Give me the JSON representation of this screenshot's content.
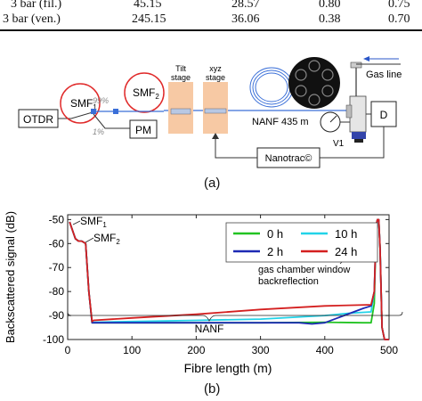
{
  "table": {
    "rows": [
      {
        "label": "3 bar (fil.)",
        "c1": "45.15",
        "c2": "28.57",
        "c3": "0.80",
        "c4": "0.75"
      },
      {
        "label": "3 bar (ven.)",
        "c1": "245.15",
        "c2": "36.06",
        "c3": "0.38",
        "c4": "0.70"
      }
    ]
  },
  "setup": {
    "otdr": "OTDR",
    "smf1": "SMF",
    "smf1_sub": "1",
    "smf2": "SMF",
    "smf2_sub": "2",
    "pct99": "99%",
    "pct1": "1%",
    "pm": "PM",
    "tilt1": "Tilt",
    "tilt2": "stage",
    "xyz1": "xyz",
    "xyz2": "stage",
    "nanf": "NANF 435 m",
    "gasline": "Gas line",
    "d": "D",
    "v1": "V1",
    "nanotrac": "Nanotrac©",
    "caption": "(a)"
  },
  "chart_data": {
    "type": "line",
    "xlabel": "Fibre length (m)",
    "ylabel": "Backscattered signal (dB)",
    "xlim": [
      0,
      500
    ],
    "ylim": [
      -100,
      -48
    ],
    "xticks": [
      "0",
      "100",
      "200",
      "300",
      "400",
      "500"
    ],
    "yticks": [
      "-50",
      "-60",
      "-70",
      "-80",
      "-90",
      "-100"
    ],
    "legend_position": "top-right",
    "annotations": {
      "smf1": "SMF",
      "smf1_sub": "1",
      "smf2": "SMF",
      "smf2_sub": "2",
      "gas1": "gas chamber window",
      "gas2": "backreflection",
      "nanf": "NANF"
    },
    "caption": "(b)",
    "series": [
      {
        "name": "0 h",
        "color": "#22c322",
        "x": [
          3,
          12,
          17,
          22,
          28,
          33,
          38,
          40,
          100,
          200,
          300,
          400,
          460,
          472,
          477,
          480,
          482,
          484,
          486,
          489,
          493,
          500
        ],
        "y": [
          -51,
          -58,
          -59,
          -59,
          -60,
          -80,
          -93,
          -93,
          -93,
          -93,
          -93,
          -92.8,
          -93,
          -93,
          -85,
          -52,
          -50,
          -50,
          -62,
          -95,
          -100,
          -100
        ]
      },
      {
        "name": "10 h",
        "color": "#22d3e8",
        "x": [
          3,
          12,
          17,
          22,
          28,
          33,
          38,
          40,
          100,
          200,
          300,
          400,
          440,
          472,
          477,
          480,
          482,
          484,
          486,
          489,
          493,
          500
        ],
        "y": [
          -51,
          -58,
          -59,
          -59,
          -60,
          -80,
          -93,
          -92.8,
          -92.5,
          -92,
          -91.5,
          -90,
          -89,
          -88.5,
          -80,
          -52,
          -50,
          -50,
          -62,
          -95,
          -100,
          -100
        ]
      },
      {
        "name": "2 h",
        "color": "#1e2ab4",
        "x": [
          3,
          12,
          17,
          22,
          28,
          33,
          38,
          40,
          100,
          200,
          300,
          360,
          380,
          400,
          420,
          440,
          460,
          472,
          477,
          480,
          482,
          484,
          486,
          489,
          493,
          500
        ],
        "y": [
          -51,
          -58,
          -59,
          -59,
          -60,
          -80,
          -93,
          -93,
          -93,
          -93,
          -93,
          -93,
          -93.5,
          -93,
          -91,
          -89,
          -87,
          -86,
          -80,
          -52,
          -50,
          -50,
          -62,
          -95,
          -100,
          -100
        ]
      },
      {
        "name": "24 h",
        "color": "#d42020",
        "x": [
          3,
          12,
          17,
          22,
          28,
          33,
          38,
          40,
          100,
          200,
          300,
          400,
          472,
          477,
          480,
          482,
          484,
          486,
          489,
          493,
          500
        ],
        "y": [
          -51,
          -58,
          -59,
          -59,
          -60,
          -80,
          -92.5,
          -92,
          -91,
          -89.5,
          -87.5,
          -86,
          -85.5,
          -80,
          -52,
          -50,
          -50,
          -62,
          -95,
          -100,
          -100
        ]
      }
    ]
  }
}
